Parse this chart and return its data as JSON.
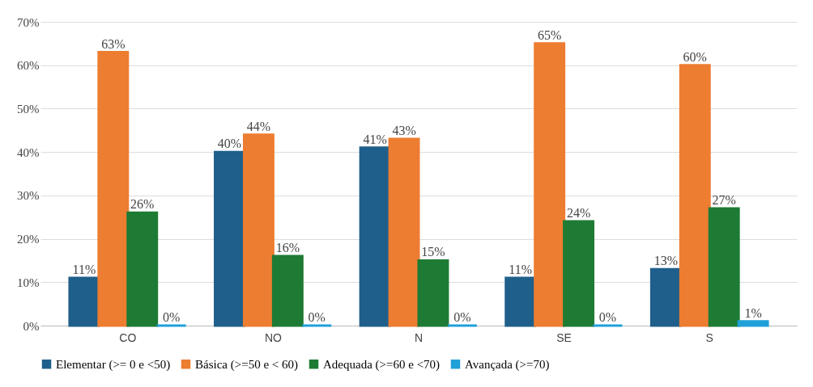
{
  "chart_data": {
    "type": "bar",
    "categories": [
      "CO",
      "NO",
      "N",
      "SE",
      "S"
    ],
    "series": [
      {
        "name": "Elementar (>= 0 e <50)",
        "color": "#1f5f8b",
        "values": [
          11,
          40,
          41,
          11,
          13
        ],
        "value_labels": [
          "11%",
          "40%",
          "41%",
          "11%",
          "13%"
        ]
      },
      {
        "name": "Básica (>=50 e < 60)",
        "color": "#ed7d31",
        "values": [
          63,
          44,
          43,
          65,
          60
        ],
        "value_labels": [
          "63%",
          "44%",
          "43%",
          "65%",
          "60%"
        ]
      },
      {
        "name": "Adequada (>=60 e <70)",
        "color": "#1e7b34",
        "values": [
          26,
          16,
          15,
          24,
          27
        ],
        "value_labels": [
          "26%",
          "16%",
          "15%",
          "24%",
          "27%"
        ]
      },
      {
        "name": "Avançada (>=70)",
        "color": "#1fa0d8",
        "values": [
          0,
          0,
          0,
          0,
          1
        ],
        "value_labels": [
          "0%",
          "0%",
          "0%",
          "0%",
          "1%"
        ]
      }
    ],
    "ylim": [
      0,
      70
    ],
    "yticks": [
      {
        "value": 0,
        "label": "0%"
      },
      {
        "value": 10,
        "label": "10%"
      },
      {
        "value": 20,
        "label": "20%"
      },
      {
        "value": 30,
        "label": "30%"
      },
      {
        "value": 40,
        "label": "40%"
      },
      {
        "value": 50,
        "label": "50%"
      },
      {
        "value": 60,
        "label": "60%"
      },
      {
        "value": 70,
        "label": "70%"
      }
    ],
    "grid": "y",
    "legend": "bottom"
  }
}
